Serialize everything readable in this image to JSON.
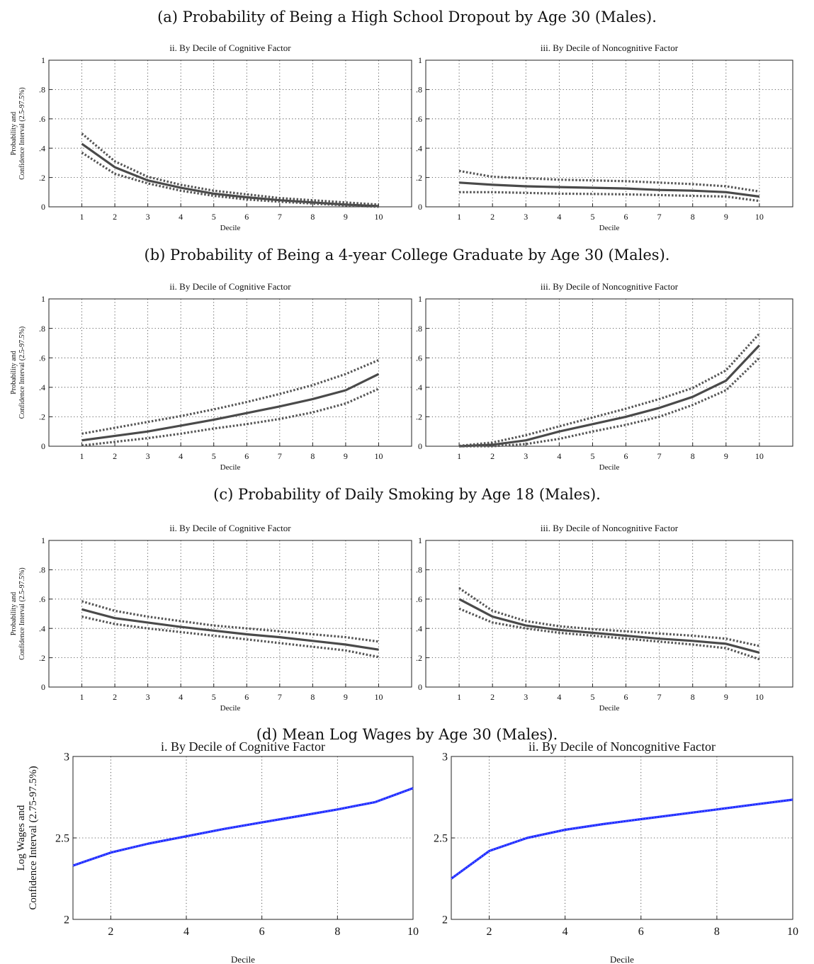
{
  "panels": [
    {
      "title": "(a) Probability of Being a High School Dropout by Age 30 (Males).",
      "charts": [
        {
          "type": "line",
          "title": "ii. By Decile of Cognitive Factor",
          "xlabel": "Decile",
          "ylabel": [
            "Probability and",
            "Confidence Interval (2.5-97.5%)"
          ],
          "xlim": [
            0,
            11
          ],
          "ylim": [
            0,
            1
          ],
          "xticks": [
            1,
            2,
            3,
            4,
            5,
            6,
            7,
            8,
            9,
            10
          ],
          "yticks": [
            0,
            0.2,
            0.4,
            0.6,
            0.8,
            1
          ],
          "x": [
            1,
            2,
            3,
            4,
            5,
            6,
            7,
            8,
            9,
            10
          ],
          "series": [
            {
              "role": "estimate",
              "values": [
                0.43,
                0.27,
                0.18,
                0.13,
                0.09,
                0.065,
                0.045,
                0.03,
                0.015,
                0.005
              ]
            },
            {
              "role": "upper",
              "values": [
                0.5,
                0.31,
                0.205,
                0.15,
                0.11,
                0.085,
                0.06,
                0.045,
                0.03,
                0.015
              ]
            },
            {
              "role": "lower",
              "values": [
                0.37,
                0.225,
                0.16,
                0.11,
                0.075,
                0.05,
                0.035,
                0.022,
                0.01,
                0.0
              ]
            }
          ],
          "grid": true
        },
        {
          "type": "line",
          "title": "iii. By Decile of Noncognitive Factor",
          "xlabel": "Decile",
          "ylabel": [],
          "xlim": [
            0,
            11
          ],
          "ylim": [
            0,
            1
          ],
          "xticks": [
            1,
            2,
            3,
            4,
            5,
            6,
            7,
            8,
            9,
            10
          ],
          "yticks": [
            0,
            0.2,
            0.4,
            0.6,
            0.8,
            1
          ],
          "x": [
            1,
            2,
            3,
            4,
            5,
            6,
            7,
            8,
            9,
            10
          ],
          "series": [
            {
              "role": "estimate",
              "values": [
                0.165,
                0.15,
                0.14,
                0.135,
                0.13,
                0.125,
                0.115,
                0.11,
                0.1,
                0.07
              ]
            },
            {
              "role": "upper",
              "values": [
                0.245,
                0.205,
                0.195,
                0.185,
                0.18,
                0.175,
                0.165,
                0.155,
                0.14,
                0.105
              ]
            },
            {
              "role": "lower",
              "values": [
                0.1,
                0.1,
                0.095,
                0.09,
                0.088,
                0.085,
                0.08,
                0.075,
                0.07,
                0.04
              ]
            }
          ],
          "grid": true
        }
      ]
    },
    {
      "title": "(b) Probability of Being a 4-year College Graduate by Age 30 (Males).",
      "charts": [
        {
          "type": "line",
          "title": "ii. By Decile of Cognitive Factor",
          "xlabel": "Decile",
          "ylabel": [
            "Probability and",
            "Confidence Interval (2.5-97.5%)"
          ],
          "xlim": [
            0,
            11
          ],
          "ylim": [
            0,
            1
          ],
          "xticks": [
            1,
            2,
            3,
            4,
            5,
            6,
            7,
            8,
            9,
            10
          ],
          "yticks": [
            0,
            0.2,
            0.4,
            0.6,
            0.8,
            1
          ],
          "x": [
            1,
            2,
            3,
            4,
            5,
            6,
            7,
            8,
            9,
            10
          ],
          "series": [
            {
              "role": "estimate",
              "values": [
                0.04,
                0.07,
                0.1,
                0.14,
                0.18,
                0.225,
                0.27,
                0.32,
                0.38,
                0.49
              ]
            },
            {
              "role": "upper",
              "values": [
                0.085,
                0.125,
                0.165,
                0.205,
                0.25,
                0.3,
                0.355,
                0.415,
                0.49,
                0.585
              ]
            },
            {
              "role": "lower",
              "values": [
                0.005,
                0.03,
                0.055,
                0.085,
                0.12,
                0.15,
                0.185,
                0.23,
                0.29,
                0.39
              ]
            }
          ],
          "grid": true
        },
        {
          "type": "line",
          "title": "iii. By Decile of Noncognitive Factor",
          "xlabel": "Decile",
          "ylabel": [],
          "xlim": [
            0,
            11
          ],
          "ylim": [
            0,
            1
          ],
          "xticks": [
            1,
            2,
            3,
            4,
            5,
            6,
            7,
            8,
            9,
            10
          ],
          "yticks": [
            0,
            0.2,
            0.4,
            0.6,
            0.8,
            1
          ],
          "x": [
            1,
            2,
            3,
            4,
            5,
            6,
            7,
            8,
            9,
            10
          ],
          "series": [
            {
              "role": "estimate",
              "values": [
                0.0,
                0.01,
                0.04,
                0.1,
                0.15,
                0.2,
                0.26,
                0.335,
                0.445,
                0.685
              ]
            },
            {
              "role": "upper",
              "values": [
                0.003,
                0.025,
                0.075,
                0.135,
                0.195,
                0.255,
                0.32,
                0.395,
                0.515,
                0.765
              ]
            },
            {
              "role": "lower",
              "values": [
                0.0,
                0.0,
                0.015,
                0.05,
                0.1,
                0.145,
                0.2,
                0.28,
                0.38,
                0.6
              ]
            }
          ],
          "grid": true
        }
      ]
    },
    {
      "title": "(c) Probability of Daily Smoking by Age 18 (Males).",
      "charts": [
        {
          "type": "line",
          "title": "ii. By Decile of Cognitive Factor",
          "xlabel": "Decile",
          "ylabel": [
            "Probability and",
            "Confidence Interval (2.5-97.5%)"
          ],
          "xlim": [
            0,
            11
          ],
          "ylim": [
            0,
            1
          ],
          "xticks": [
            1,
            2,
            3,
            4,
            5,
            6,
            7,
            8,
            9,
            10
          ],
          "yticks": [
            0,
            0.2,
            0.4,
            0.6,
            0.8,
            1
          ],
          "x": [
            1,
            2,
            3,
            4,
            5,
            6,
            7,
            8,
            9,
            10
          ],
          "series": [
            {
              "role": "estimate",
              "values": [
                0.53,
                0.47,
                0.44,
                0.41,
                0.385,
                0.36,
                0.34,
                0.315,
                0.29,
                0.255
              ]
            },
            {
              "role": "upper",
              "values": [
                0.585,
                0.52,
                0.48,
                0.45,
                0.42,
                0.4,
                0.38,
                0.36,
                0.34,
                0.31
              ]
            },
            {
              "role": "lower",
              "values": [
                0.48,
                0.43,
                0.4,
                0.375,
                0.35,
                0.325,
                0.3,
                0.275,
                0.25,
                0.205
              ]
            }
          ],
          "grid": true
        },
        {
          "type": "line",
          "title": "iii. By Decile of Noncognitive Factor",
          "xlabel": "Decile",
          "ylabel": [],
          "xlim": [
            0,
            11
          ],
          "ylim": [
            0,
            1
          ],
          "xticks": [
            1,
            2,
            3,
            4,
            5,
            6,
            7,
            8,
            9,
            10
          ],
          "yticks": [
            0,
            0.2,
            0.4,
            0.6,
            0.8,
            1
          ],
          "x": [
            1,
            2,
            3,
            4,
            5,
            6,
            7,
            8,
            9,
            10
          ],
          "series": [
            {
              "role": "estimate",
              "values": [
                0.6,
                0.48,
                0.42,
                0.39,
                0.37,
                0.35,
                0.33,
                0.315,
                0.295,
                0.235
              ]
            },
            {
              "role": "upper",
              "values": [
                0.675,
                0.52,
                0.45,
                0.415,
                0.395,
                0.38,
                0.365,
                0.35,
                0.33,
                0.28
              ]
            },
            {
              "role": "lower",
              "values": [
                0.535,
                0.44,
                0.4,
                0.37,
                0.35,
                0.33,
                0.31,
                0.29,
                0.265,
                0.19
              ]
            }
          ],
          "grid": true
        }
      ]
    },
    {
      "title": "(d) Mean Log Wages by Age 30 (Males).",
      "charts": [
        {
          "type": "line",
          "title": "i. By Decile of Cognitive Factor",
          "xlabel": "Decile",
          "ylabel": [
            "Log Wages and",
            "Confidence Interval (2.75-97.5%)"
          ],
          "xlim": [
            1,
            10
          ],
          "ylim": [
            2,
            3
          ],
          "xticks": [
            2,
            4,
            6,
            8,
            10
          ],
          "yticks": [
            2,
            2.5,
            3
          ],
          "x": [
            1,
            2,
            3,
            4,
            5,
            6,
            7,
            8,
            9,
            10
          ],
          "series": [
            {
              "role": "estimate",
              "color": "#1f2cff",
              "values": [
                2.33,
                2.41,
                2.465,
                2.51,
                2.555,
                2.595,
                2.635,
                2.675,
                2.72,
                2.805
              ]
            }
          ],
          "grid": true
        },
        {
          "type": "line",
          "title": "ii. By Decile of Noncognitive Factor",
          "xlabel": "Decile",
          "ylabel": [],
          "xlim": [
            1,
            10
          ],
          "ylim": [
            2,
            3
          ],
          "xticks": [
            2,
            4,
            6,
            8,
            10
          ],
          "yticks": [
            2,
            2.5,
            3
          ],
          "x": [
            1,
            2,
            3,
            4,
            5,
            6,
            7,
            8,
            9,
            10
          ],
          "series": [
            {
              "role": "estimate",
              "color": "#1f2cff",
              "values": [
                2.25,
                2.42,
                2.5,
                2.55,
                2.585,
                2.615,
                2.645,
                2.675,
                2.705,
                2.735
              ]
            }
          ],
          "grid": true
        }
      ]
    }
  ]
}
